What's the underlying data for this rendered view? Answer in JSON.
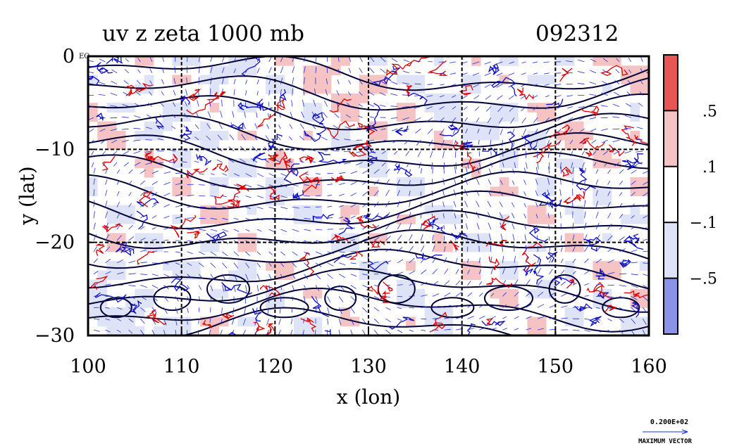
{
  "chart_data": {
    "type": "heatmap",
    "title": "uv z zeta 1000 mb",
    "timestamp": "092312",
    "xlabel": "x (lon)",
    "ylabel": "y (lat)",
    "xlim": [
      100,
      160
    ],
    "ylim": [
      -30,
      0
    ],
    "x_ticks": [
      100,
      110,
      120,
      130,
      140,
      150,
      160
    ],
    "y_ticks": [
      {
        "value": 0,
        "label": "0"
      },
      {
        "value": -10,
        "label": "−10"
      },
      {
        "value": -20,
        "label": "−20"
      },
      {
        "value": -30,
        "label": "−30"
      }
    ],
    "y_tick_suffix": "EQ",
    "grid": true,
    "colorbar": {
      "levels": [
        {
          "color": "#e85555"
        },
        {
          "color": "#f5c3c3"
        },
        {
          "color": "#ffffff"
        },
        {
          "color": "#dfe3f8"
        },
        {
          "color": "#8b93e8"
        }
      ],
      "boundary_labels": [
        ".5",
        ".1",
        "−.1",
        "−.5"
      ]
    },
    "vector_key": {
      "value_label": "0.200E+02",
      "caption": "MAXIMUM VECTOR"
    },
    "colors": {
      "positive_contour": "#e00000",
      "negative_contour": "#1010c0",
      "height_contour": "#000033",
      "vector": "#1a2fe0",
      "positive_fill": "#f5c3c3",
      "negative_fill": "#dfe3f8"
    }
  }
}
